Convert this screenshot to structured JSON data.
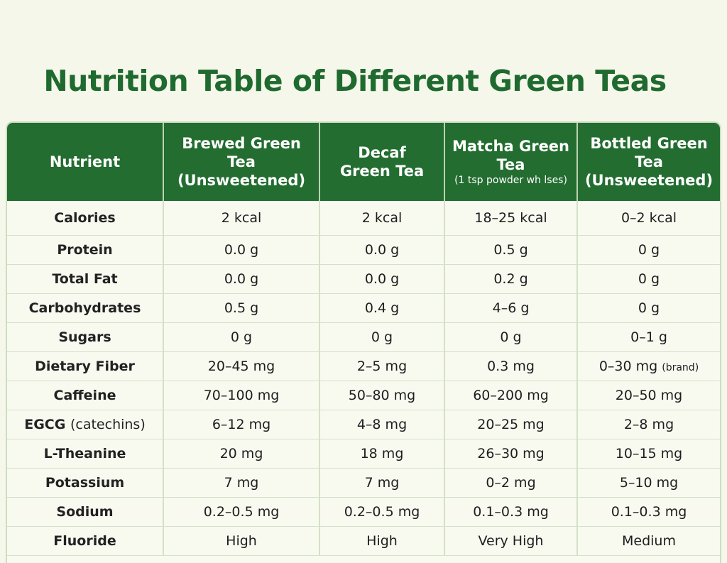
{
  "title": "Nutrition Table of Different Green Teas",
  "headers": {
    "nutrient": "Nutrient",
    "brewed": {
      "line1": "Brewed Green",
      "line2": "Tea",
      "line3": "(Unsweetened)"
    },
    "decaf": {
      "line1": "Decaf",
      "line2": "Green Tea"
    },
    "matcha": {
      "line1": "Matcha Green",
      "line2": "Tea",
      "sub": "(1 tsp powder wh lses)"
    },
    "bottled": {
      "line1": "Bottled Green",
      "line2": "Tea",
      "line3": "(Unsweetened)"
    }
  },
  "rows": [
    {
      "nutrient": "Calories",
      "brewed": "2 kcal",
      "decaf": "2 kcal",
      "matcha": "18–25 kcal",
      "bottled": "0–2 kcal"
    },
    {
      "nutrient": "Protein",
      "brewed": "0.0 g",
      "decaf": "0.0 g",
      "matcha": "0.5 g",
      "bottled": "0 g"
    },
    {
      "nutrient": "Total Fat",
      "brewed": "0.0 g",
      "decaf": "0.0 g",
      "matcha": "0.2 g",
      "bottled": "0 g"
    },
    {
      "nutrient": "Carbohydrates",
      "brewed": "0.5 g",
      "decaf": "0.4 g",
      "matcha": "4–6 g",
      "bottled": "0 g"
    },
    {
      "nutrient": "Sugars",
      "brewed": "0 g",
      "decaf": "0 g",
      "matcha": "0 g",
      "bottled": "0–1 g"
    },
    {
      "nutrient": "Dietary Fiber",
      "brewed": "20–45 mg",
      "decaf": "2–5 mg",
      "matcha": "0.3 mg",
      "bottled": "0–30 mg",
      "bottled_note": "(brand)"
    },
    {
      "nutrient": "Caffeine",
      "brewed": "70–100 mg",
      "decaf": "50–80 mg",
      "matcha": "60–200 mg",
      "bottled": "20–50 mg"
    },
    {
      "nutrient": "EGCG",
      "nutrient_note": "(catechins)",
      "brewed": "6–12 mg",
      "decaf": "4–8 mg",
      "matcha": "20–25 mg",
      "bottled": "2–8 mg"
    },
    {
      "nutrient": "L-Theanine",
      "brewed": "20 mg",
      "decaf": "18 mg",
      "matcha": "26–30 mg",
      "bottled": "10–15 mg"
    },
    {
      "nutrient": "Potassium",
      "brewed": "7 mg",
      "decaf": "7 mg",
      "matcha": "0–2 mg",
      "bottled": "5–10 mg"
    },
    {
      "nutrient": "Sodium",
      "brewed": "0.2–0.5 mg",
      "decaf": "0.2–0.5 mg",
      "matcha": "0.1–0.3 mg",
      "bottled": "0.1–0.3 mg"
    },
    {
      "nutrient": "Fluoride",
      "brewed": "High",
      "decaf": "High",
      "matcha": "Very High",
      "bottled": "Medium"
    }
  ]
}
